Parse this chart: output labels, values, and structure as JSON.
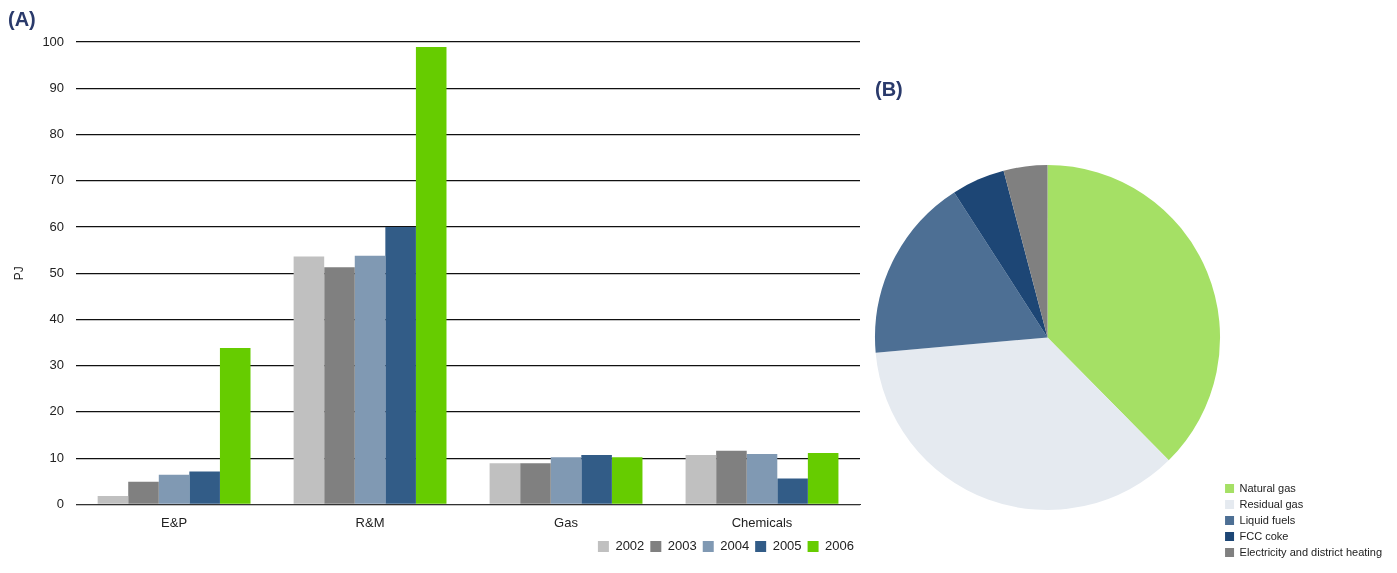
{
  "chart_data": [
    {
      "type": "bar",
      "title": "(A)",
      "ylabel": "PJ",
      "categories": [
        "E&P",
        "R&M",
        "Gas",
        "Chemicals"
      ],
      "series": [
        {
          "name": "2002",
          "color": "#c0c0c0",
          "values": [
            1.8,
            53.6,
            8.9,
            10.7
          ]
        },
        {
          "name": "2003",
          "color": "#808080",
          "values": [
            4.9,
            51.3,
            8.9,
            11.6
          ]
        },
        {
          "name": "2004",
          "color": "#8099b3",
          "values": [
            6.4,
            53.8,
            10.2,
            10.9
          ]
        },
        {
          "name": "2005",
          "color": "#325c87",
          "values": [
            7.1,
            60,
            10.7,
            5.6
          ]
        },
        {
          "name": "2006",
          "color": "#66cc00",
          "values": [
            33.8,
            98.9,
            10.2,
            11.1
          ]
        }
      ],
      "ylim": [
        0,
        100
      ],
      "yticks": [
        0,
        10,
        20,
        30,
        40,
        50,
        60,
        70,
        80,
        90,
        100
      ],
      "grid": "y",
      "legend": "bottom right"
    },
    {
      "type": "pie",
      "title": "(B)",
      "categories": [
        "Natural gas",
        "Residual gas",
        "Liquid fuels",
        "FCC coke",
        "Electricity and district heating"
      ],
      "values": [
        37.6,
        36.0,
        17.3,
        5.0,
        4.1
      ],
      "colors": [
        "#a5e065",
        "#e5eaf0",
        "#4d6f94",
        "#1d4675",
        "#808080"
      ],
      "legend": "bottom right"
    }
  ]
}
